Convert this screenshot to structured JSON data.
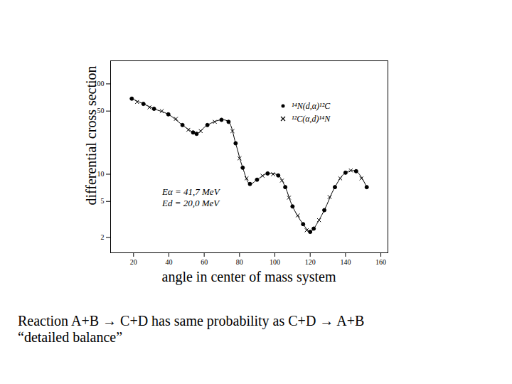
{
  "chart_data": {
    "type": "scatter",
    "x_label": "angle in center of mass system",
    "y_label": "differential cross section",
    "log": "y",
    "xlim": [
      7,
      164
    ],
    "ylim": [
      1.35,
      180
    ],
    "xticks": [
      20,
      40,
      60,
      80,
      100,
      120,
      140,
      160
    ],
    "yticks": [
      100,
      50,
      10,
      5,
      2
    ],
    "legend": "top-right",
    "annotations": [
      "Eα = 41,7 MeV",
      "Ed = 20,0 MeV"
    ],
    "caption": [
      "Reaction A+B → C+D has same probability as C+D → A+B",
      "“detailed balance”"
    ],
    "series": [
      {
        "name": "¹⁴N(d,α)¹²C",
        "type": "line",
        "marker": "circle",
        "color": "#000000",
        "x": [
          19,
          25.6,
          31.6,
          39.7,
          47.7,
          53.7,
          55.7,
          61.8,
          69.8,
          73.8,
          77.8,
          81.8,
          85.9,
          89.9,
          95.9,
          101.9,
          105.9,
          110,
          116,
          120,
          122,
          128,
          134,
          140,
          146,
          152
        ],
        "values": [
          68.6,
          60,
          53,
          46,
          35,
          29,
          28,
          35,
          40,
          38,
          22,
          11.8,
          7.8,
          8.7,
          10.2,
          9.7,
          7.2,
          4.4,
          2.8,
          2.3,
          2.5,
          4.0,
          7.2,
          10.4,
          10.8,
          7.2
        ]
      },
      {
        "name": "¹²C(α,d)¹⁴N",
        "type": "scatter",
        "marker": "times",
        "color": "#000000",
        "x": [
          22,
          29,
          36,
          44,
          51,
          58,
          66,
          76,
          80,
          84,
          93,
          99,
          104,
          108,
          113,
          118,
          125,
          131,
          137,
          143,
          149
        ],
        "values": [
          63,
          55,
          50,
          41,
          31,
          30,
          38,
          30,
          15,
          9,
          9.6,
          10,
          8.5,
          5.5,
          3.5,
          2.4,
          3.1,
          5.6,
          9,
          11,
          9
        ]
      }
    ]
  }
}
